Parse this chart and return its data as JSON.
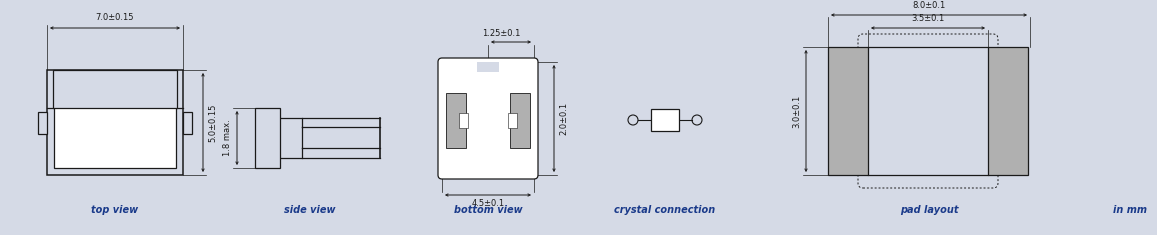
{
  "bg_color": "#d5dae6",
  "line_color": "#1a1a1a",
  "fill_color": "#b0b0b0",
  "label_color": "#1a3a8a",
  "labels": {
    "top_view": "top view",
    "side_view": "side view",
    "bottom_view": "bottom view",
    "crystal_connection": "crystal connection",
    "pad_layout": "pad layout",
    "in_mm": "in mm"
  },
  "dims": {
    "top_width": "7.0±0.15",
    "top_height": "5.0±0.15",
    "side_height": "1.8 max.",
    "bottom_width": "1.25±0.1",
    "bottom_height": "2.0±0.1",
    "bottom_pad": "4.5±0.1",
    "pad_total": "8.0±0.1",
    "pad_inner": "3.5±0.1",
    "pad_height": "3.0±0.1"
  }
}
